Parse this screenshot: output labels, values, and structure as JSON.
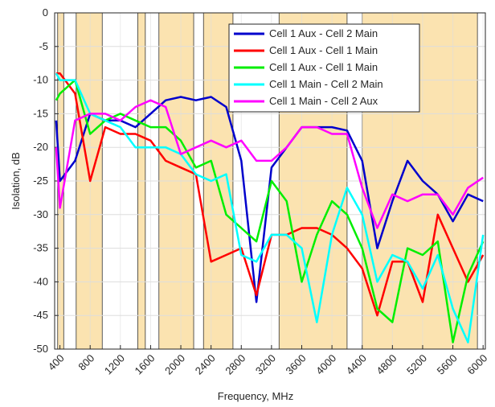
{
  "chart_data": {
    "type": "line",
    "xlabel": "Frequency, MHz",
    "ylabel": "Isolation, dB",
    "xlim": [
      330,
      6030
    ],
    "ylim": [
      -50,
      0
    ],
    "xticks": [
      400,
      800,
      1200,
      1600,
      2000,
      2400,
      2800,
      3200,
      3600,
      4000,
      4400,
      4800,
      5200,
      5600,
      6000
    ],
    "yticks": [
      -50,
      -45,
      -40,
      -35,
      -30,
      -25,
      -20,
      -15,
      -10,
      -5,
      0
    ],
    "grid": true,
    "legend": "upper right",
    "band_color": "#fbe3b0",
    "bands": [
      [
        370,
        450
      ],
      [
        615,
        960
      ],
      [
        1430,
        1530
      ],
      [
        1710,
        2170
      ],
      [
        2300,
        2690
      ],
      [
        3300,
        4200
      ],
      [
        4400,
        5925
      ]
    ],
    "x": [
      350,
      400,
      600,
      800,
      1000,
      1200,
      1400,
      1600,
      1800,
      2000,
      2200,
      2400,
      2600,
      2800,
      3000,
      3200,
      3400,
      3600,
      3800,
      4000,
      4200,
      4400,
      4600,
      4800,
      5000,
      5200,
      5400,
      5600,
      5800,
      6000
    ],
    "series": [
      {
        "name": "Cell 1 Aux - Cell 2 Main",
        "color": "#0000cc",
        "values": [
          -16,
          -25,
          -22,
          -15,
          -16,
          -16,
          -17,
          -15,
          -13,
          -12.5,
          -13,
          -12.5,
          -14,
          -22,
          -43,
          -23,
          -20,
          -17,
          -17,
          -17,
          -17.5,
          -22,
          -35,
          -28,
          -22,
          -25,
          -27,
          -31,
          -27,
          -28
        ]
      },
      {
        "name": "Cell 1 Aux - Cell 1 Main",
        "color": "#ff0000",
        "values": [
          -9,
          -9,
          -12,
          -25,
          -17,
          -18,
          -18,
          -19,
          -22,
          -23,
          -24,
          -37,
          -36,
          -35,
          -42,
          -33,
          -33,
          -32,
          -32,
          -33,
          -35,
          -38,
          -45,
          -37,
          -37,
          -43,
          -30,
          -35,
          -40,
          -36
        ]
      },
      {
        "name": "Cell 1 Aux - Cell 1 Main",
        "color": "#00ee00",
        "values": [
          -13,
          -12,
          -10,
          -18,
          -16,
          -15,
          -16,
          -17,
          -17,
          -19,
          -23,
          -22,
          -30,
          -32,
          -34,
          -25,
          -28,
          -40,
          -33,
          -28,
          -30,
          -35,
          -44,
          -46,
          -35,
          -36,
          -34,
          -49,
          -39,
          -34
        ]
      },
      {
        "name": "Cell 1 Main - Cell 2 Main",
        "color": "#00ffff",
        "values": [
          -9,
          -10,
          -10,
          -15,
          -16,
          -17,
          -20,
          -20,
          -20,
          -21,
          -24,
          -25,
          -24,
          -36,
          -37,
          -33,
          -33,
          -35,
          -46,
          -33,
          -26,
          -30,
          -40,
          -36,
          -37,
          -41,
          -36,
          -44,
          -49,
          -33
        ]
      },
      {
        "name": "Cell 1 Main - Cell 2 Aux",
        "color": "#ff00ff",
        "values": [
          -20,
          -29,
          -16,
          -15,
          -15,
          -16,
          -14,
          -13,
          -14,
          -21,
          -20,
          -19,
          -20,
          -19,
          -22,
          -22,
          -20,
          -17,
          -17,
          -18,
          -18,
          -26,
          -32,
          -27,
          -28,
          -27,
          -27,
          -30,
          -26,
          -24.5
        ]
      }
    ]
  }
}
